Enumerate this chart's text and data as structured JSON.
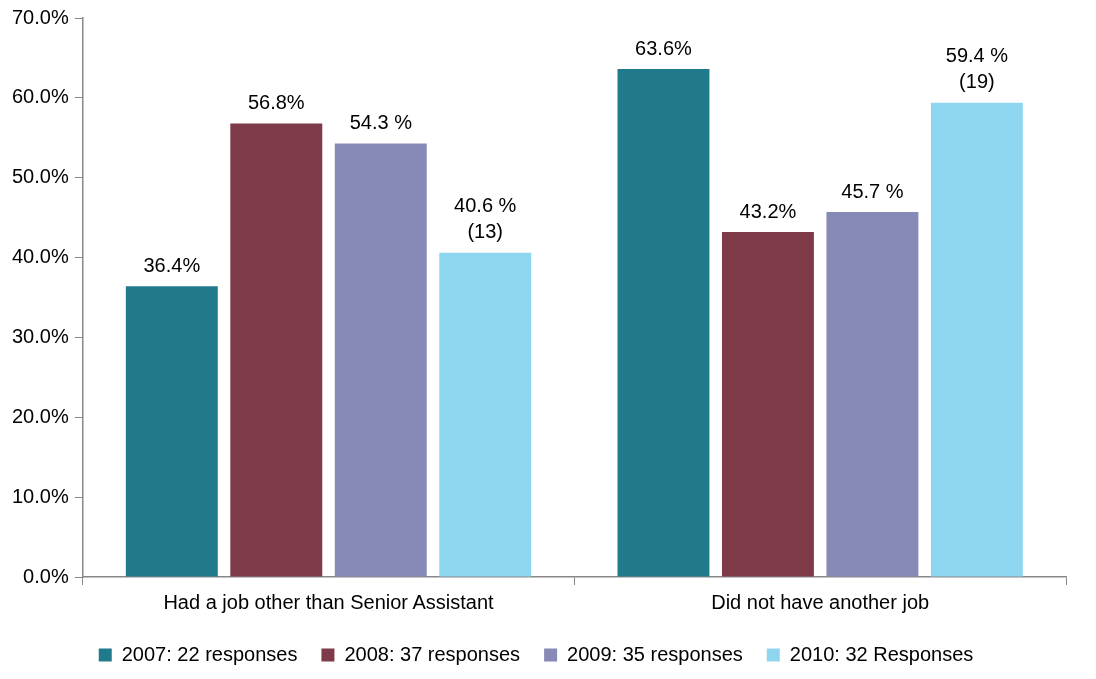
{
  "chart_data": {
    "type": "bar",
    "categories": [
      "Had a job other than Senior Assistant",
      "Did not have another job"
    ],
    "series": [
      {
        "name": "2007: 22 responses",
        "color": "#207a8c",
        "values": [
          36.4,
          63.6
        ],
        "value_labels": [
          "36.4%",
          "63.6%"
        ]
      },
      {
        "name": "2008: 37 responses",
        "color": "#7f3a4a",
        "values": [
          56.8,
          43.2
        ],
        "value_labels": [
          "56.8%",
          "43.2%"
        ]
      },
      {
        "name": "2009: 35 responses",
        "color": "#8789b7",
        "values": [
          54.3,
          45.7
        ],
        "value_labels": [
          "54.3 %",
          "45.7 %"
        ]
      },
      {
        "name": "2010: 32 Responses",
        "color": "#8ed6ef",
        "values": [
          40.6,
          59.4
        ],
        "value_labels": [
          "40.6 %\n(13)",
          "59.4 %\n(19)"
        ]
      }
    ],
    "ylim": [
      0,
      70
    ],
    "yticks": [
      {
        "value": 0,
        "label": "0.0%"
      },
      {
        "value": 10,
        "label": "10.0%"
      },
      {
        "value": 20,
        "label": "20.0%"
      },
      {
        "value": 30,
        "label": "30.0%"
      },
      {
        "value": 40,
        "label": "40.0%"
      },
      {
        "value": 50,
        "label": "50.0%"
      },
      {
        "value": 60,
        "label": "60.0%"
      },
      {
        "value": 70,
        "label": "70.0%"
      }
    ],
    "grid": false,
    "legend": "bottom"
  }
}
